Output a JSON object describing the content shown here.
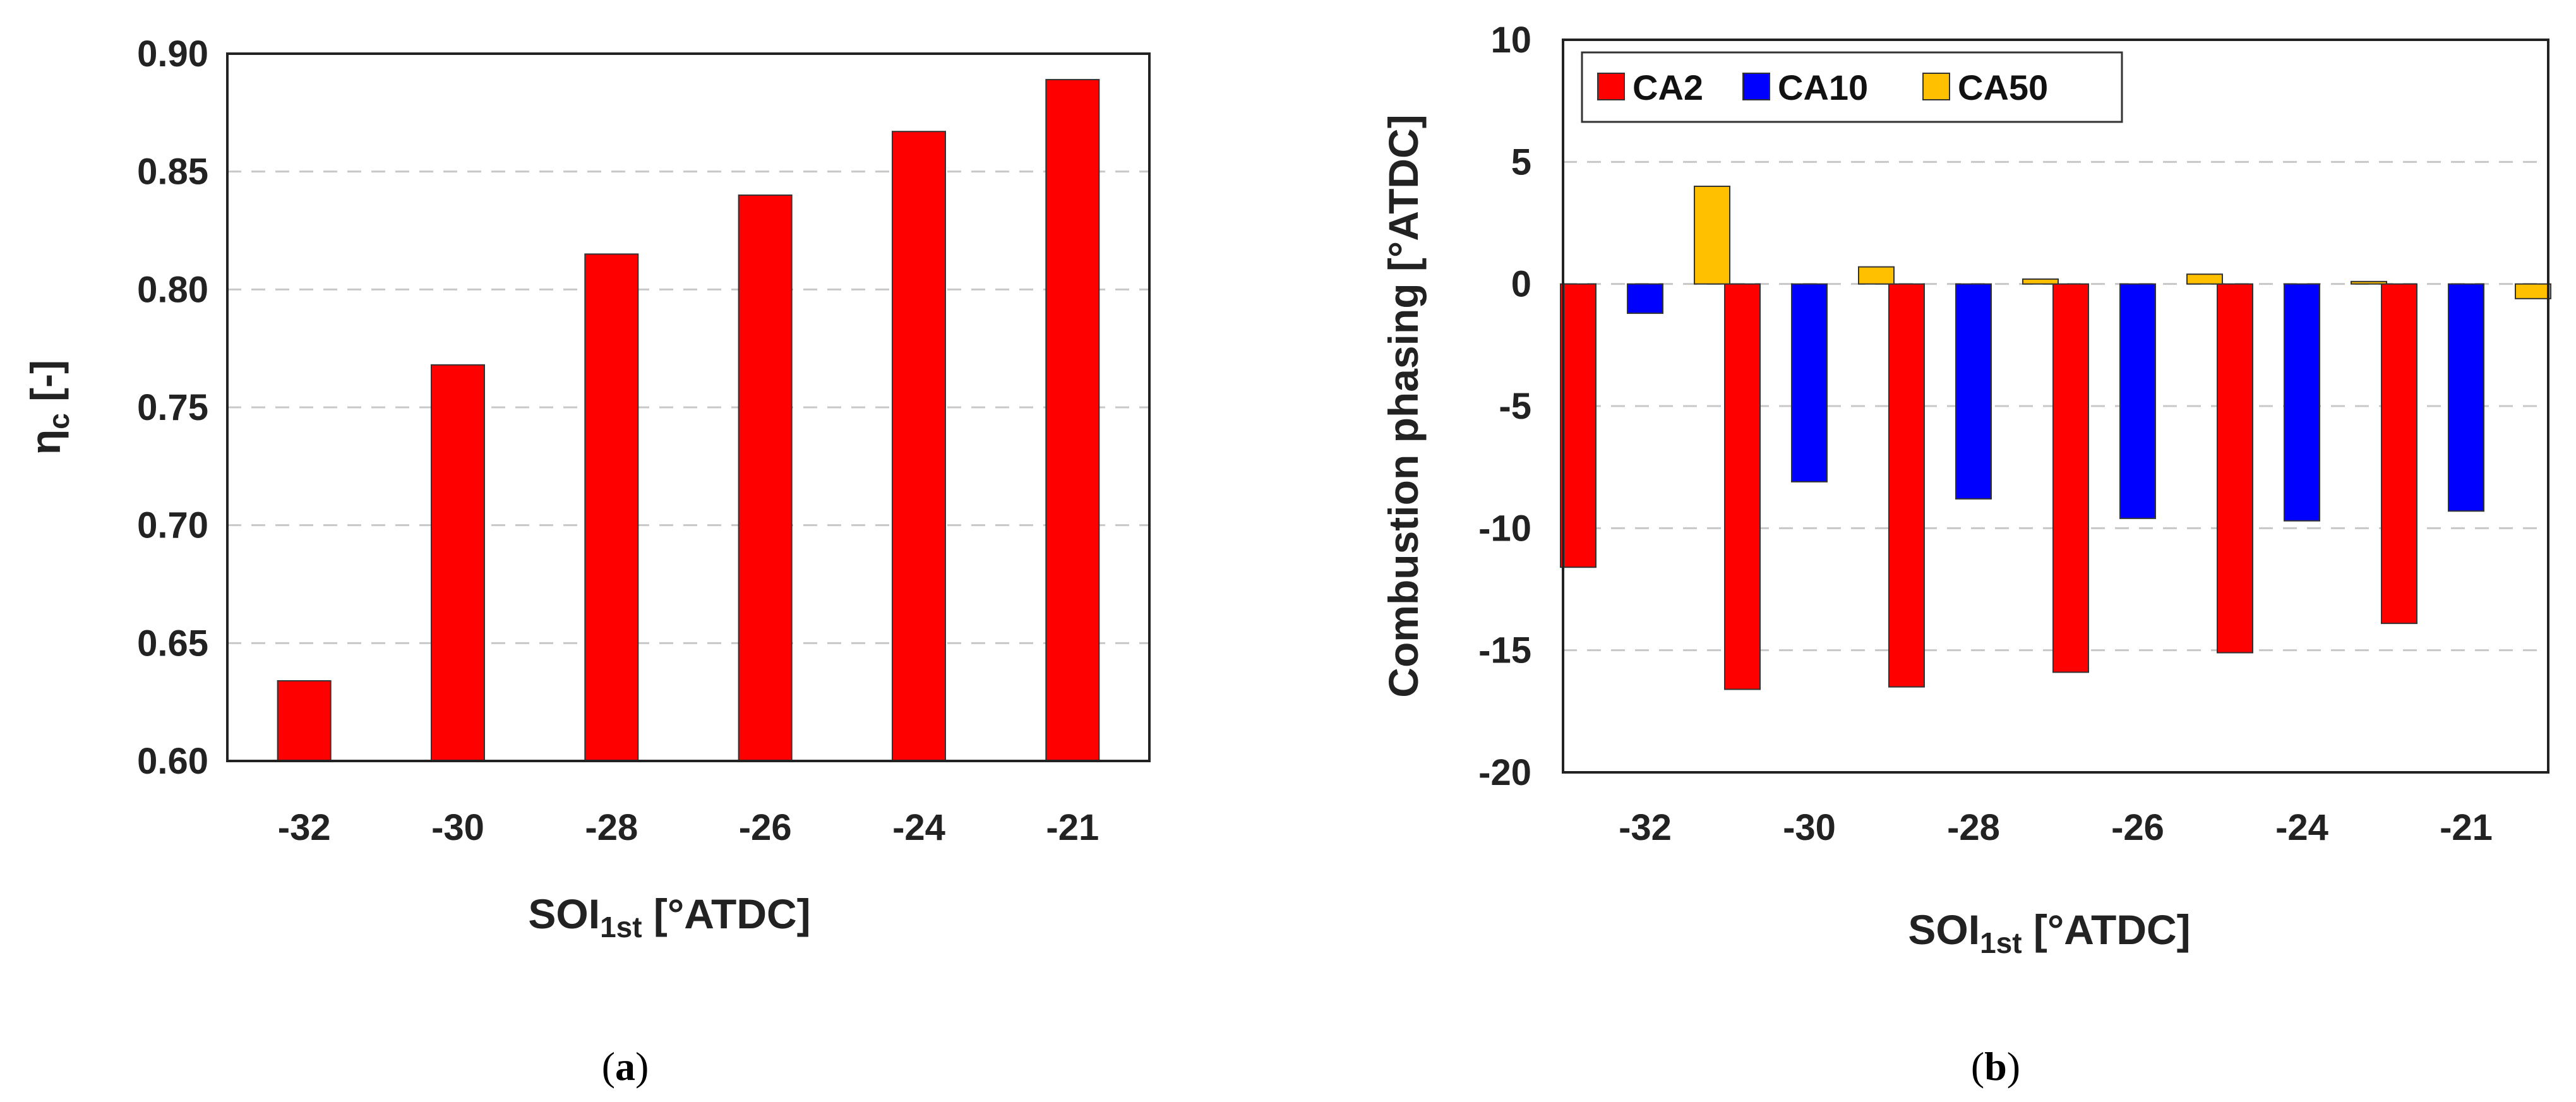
{
  "chart_data": [
    {
      "type": "bar",
      "panel_label": "(a)",
      "categories": [
        "-32",
        "-30",
        "-28",
        "-26",
        "-24",
        "-21"
      ],
      "series": [
        {
          "values": [
            0.634,
            0.768,
            0.815,
            0.84,
            0.867,
            0.889
          ],
          "color": "#ff0000"
        }
      ],
      "xlabel": {
        "main": "SOI",
        "sub": "1st",
        "rest": " [°ATDC]"
      },
      "ylabel": {
        "main": "η",
        "sub": "c",
        "rest": " [-]"
      },
      "ylim": [
        0.6,
        0.9
      ],
      "yticks": [
        "0.60",
        "0.65",
        "0.70",
        "0.75",
        "0.80",
        "0.85",
        "0.90"
      ],
      "grid": "horizontal dashed",
      "legend": false
    },
    {
      "type": "bar",
      "panel_label": "(b)",
      "categories": [
        "-32",
        "-30",
        "-28",
        "-26",
        "-24",
        "-21"
      ],
      "series": [
        {
          "name": "CA2",
          "values": [
            -11.6,
            -16.6,
            -16.5,
            -15.9,
            -15.1,
            -13.9
          ],
          "color": "#ff0000"
        },
        {
          "name": "CA10",
          "values": [
            -1.2,
            -8.1,
            -8.8,
            -9.6,
            -9.7,
            -9.3
          ],
          "color": "#0000ff"
        },
        {
          "name": "CA50",
          "values": [
            4.0,
            0.7,
            0.2,
            0.4,
            0.1,
            -0.6
          ],
          "color": "#ffc000"
        }
      ],
      "xlabel": {
        "main": "SOI",
        "sub": "1st",
        "rest": " [°ATDC]"
      },
      "ylabel": {
        "main": "Combustion phasing [°ATDC]"
      },
      "ylim": [
        -20,
        10
      ],
      "yticks": [
        "-20",
        "-15",
        "-10",
        "-5",
        "0",
        "5",
        "10"
      ],
      "grid": "horizontal dashed",
      "legend": "top-left"
    }
  ]
}
